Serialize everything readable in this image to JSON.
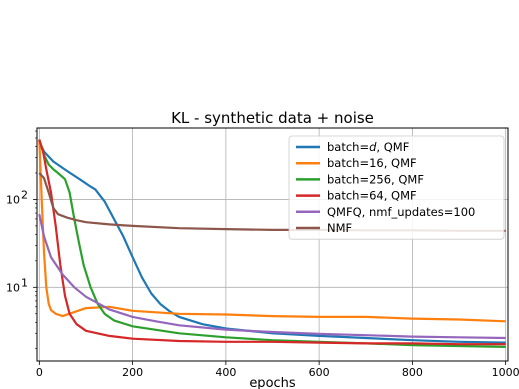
{
  "chart_data": {
    "type": "line",
    "title": "KL - synthetic data + noise",
    "xlabel": "epochs",
    "ylabel": "",
    "xlim": [
      -5,
      1005
    ],
    "ylim": [
      1.45,
      650
    ],
    "yscale": "log",
    "grid": true,
    "legend_position": "top-right",
    "xticks": [
      0,
      200,
      400,
      600,
      800,
      1000
    ],
    "yticks": [
      {
        "value": 100,
        "base": "10",
        "exp": "2"
      },
      {
        "value": 10,
        "base": "10",
        "exp": "1"
      }
    ],
    "series": [
      {
        "name": "batch=d, QMF",
        "name_prefix": "batch=",
        "name_italic": "d",
        "name_suffix": ", QMF",
        "color": "#1f77b4",
        "x": [
          0,
          10,
          30,
          60,
          90,
          110,
          120,
          140,
          160,
          180,
          200,
          220,
          240,
          260,
          280,
          300,
          350,
          400,
          500,
          600,
          700,
          800,
          900,
          1000
        ],
        "y": [
          450,
          350,
          270,
          210,
          165,
          140,
          130,
          95,
          60,
          38,
          22,
          13,
          8.5,
          6.4,
          5.3,
          4.6,
          3.8,
          3.4,
          3.0,
          2.8,
          2.65,
          2.5,
          2.4,
          2.35
        ]
      },
      {
        "name": "batch=16, QMF",
        "color": "#ff7f0e",
        "x": [
          0,
          5,
          10,
          15,
          20,
          25,
          35,
          50,
          100,
          150,
          200,
          300,
          400,
          500,
          600,
          700,
          800,
          900,
          1000
        ],
        "y": [
          480,
          100,
          25,
          10,
          6.5,
          5.5,
          5.0,
          4.7,
          5.8,
          6.0,
          5.4,
          5.0,
          4.9,
          4.7,
          4.6,
          4.6,
          4.4,
          4.3,
          4.1
        ]
      },
      {
        "name": "batch=256, QMF",
        "color": "#2ca02c",
        "x": [
          0,
          10,
          20,
          30,
          40,
          55,
          65,
          75,
          85,
          95,
          110,
          125,
          140,
          160,
          200,
          300,
          400,
          500,
          600,
          700,
          800,
          900,
          1000
        ],
        "y": [
          480,
          320,
          250,
          220,
          200,
          170,
          120,
          60,
          32,
          18,
          10,
          6.5,
          5.0,
          4.2,
          3.6,
          3.0,
          2.7,
          2.5,
          2.4,
          2.3,
          2.2,
          2.15,
          2.1
        ]
      },
      {
        "name": "batch=64, QMF",
        "color": "#d62728",
        "x": [
          0,
          8,
          15,
          25,
          35,
          45,
          55,
          65,
          80,
          100,
          150,
          200,
          300,
          400,
          500,
          600,
          700,
          800,
          900,
          1000
        ],
        "y": [
          480,
          350,
          220,
          120,
          50,
          18,
          8.0,
          5.0,
          3.8,
          3.2,
          2.8,
          2.6,
          2.45,
          2.4,
          2.4,
          2.35,
          2.3,
          2.3,
          2.25,
          2.25
        ]
      },
      {
        "name": "QMFQ, nmf_updates=100",
        "color": "#9467bd",
        "x": [
          0,
          10,
          25,
          50,
          75,
          100,
          150,
          200,
          250,
          300,
          400,
          500,
          600,
          700,
          800,
          900,
          1000
        ],
        "y": [
          68,
          38,
          22,
          14,
          10,
          7.8,
          5.6,
          4.6,
          4.1,
          3.7,
          3.3,
          3.1,
          2.95,
          2.85,
          2.75,
          2.7,
          2.65
        ]
      },
      {
        "name": "NMF",
        "color": "#8c564b",
        "x": [
          0,
          10,
          20,
          30,
          40,
          60,
          80,
          100,
          150,
          200,
          300,
          400,
          500,
          600,
          700,
          800,
          900,
          1000
        ],
        "y": [
          200,
          175,
          120,
          80,
          68,
          62,
          58,
          55,
          52,
          50,
          47,
          46,
          45,
          45,
          44.5,
          44.5,
          44,
          44
        ]
      }
    ]
  }
}
